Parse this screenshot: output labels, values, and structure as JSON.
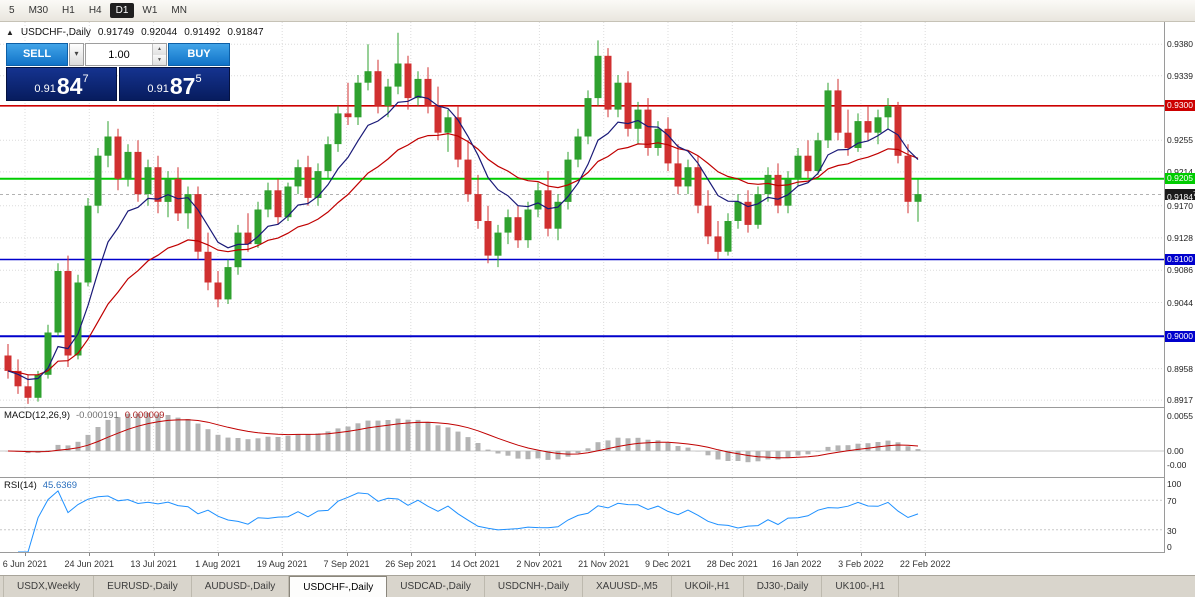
{
  "toolbar": {
    "timeframes": [
      "5",
      "M30",
      "H1",
      "H4",
      "D1",
      "W1",
      "MN"
    ],
    "active_timeframe": "D1"
  },
  "chart_header": {
    "icon": "▲",
    "title": "USDCHF-,Daily",
    "open": "0.91749",
    "high": "0.92044",
    "low": "0.91492",
    "close": "0.91847"
  },
  "icons": {
    "dropdown": "▾",
    "spin_up": "▲",
    "spin_down": "▼"
  },
  "trade_panel": {
    "sell_label": "SELL",
    "buy_label": "BUY",
    "volume": "1.00",
    "sell_price": {
      "prefix": "0.91",
      "big": "84",
      "sup": "7"
    },
    "buy_price": {
      "prefix": "0.91",
      "big": "87",
      "sup": "5"
    }
  },
  "macd_panel": {
    "label": "MACD(12,26,9)",
    "value_main": "-0.000191",
    "value_signal": "0.000009",
    "axis": [
      "0.0055",
      "0.00",
      "-0.00"
    ]
  },
  "rsi_panel": {
    "label": "RSI(14)",
    "value": "45.6369",
    "axis": [
      "100",
      "70",
      "30",
      "0"
    ]
  },
  "tabs": [
    "USDX,Weekly",
    "EURUSD-,Daily",
    "AUDUSD-,Daily",
    "USDCHF-,Daily",
    "USDCAD-,Daily",
    "USDCNH-,Daily",
    "XAUUSD-,M5",
    "UKOil-,H1",
    "DJ30-,Daily",
    "UK100-,H1"
  ],
  "active_tab": "USDCHF-,Daily",
  "colors": {
    "up": "#2fa12f",
    "down": "#d03030",
    "ma_fast": "#1a1a78",
    "ma_slow": "#c00000",
    "macd_hist": "#b4b4b4",
    "macd_signal": "#c00000",
    "rsi_line": "#1e90ff",
    "grid": "#dcdcdc",
    "bid_line": "#999999",
    "bid_badge_bg": "#1a1a1a"
  },
  "chart_data": {
    "type": "candlestick",
    "symbol": "USDCHF-",
    "timeframe": "Daily",
    "ohlc_display": {
      "open": 0.91749,
      "high": 0.92044,
      "low": 0.91492,
      "close": 0.91847
    },
    "x_labels": [
      "6 Jun 2021",
      "24 Jun 2021",
      "13 Jul 2021",
      "1 Aug 2021",
      "19 Aug 2021",
      "7 Sep 2021",
      "26 Sep 2021",
      "14 Oct 2021",
      "2 Nov 2021",
      "21 Nov 2021",
      "9 Dec 2021",
      "28 Dec 2021",
      "16 Jan 2022",
      "3 Feb 2022",
      "22 Feb 2022"
    ],
    "y_ticks": [
      "0.9380",
      "0.9339",
      "0.9255",
      "0.9214",
      "0.9170",
      "0.9128",
      "0.9086",
      "0.9044",
      "0.8958",
      "0.8917"
    ],
    "levels": [
      {
        "price": 0.93,
        "color": "#cc0000",
        "badge": "0.9300",
        "width": 1.6
      },
      {
        "price": 0.9205,
        "color": "#00cc00",
        "badge": "0.9205",
        "width": 2
      },
      {
        "price": 0.91,
        "color": "#0000cc",
        "badge": "0.9100",
        "width": 1.6
      },
      {
        "price": 0.9,
        "color": "#0000cc",
        "badge": "0.9000",
        "width": 2
      }
    ],
    "bid": {
      "price": 0.91847,
      "badge": "0.9184",
      "badge_sup": "7"
    },
    "candles": [
      [
        0.8975,
        0.899,
        0.8945,
        0.8955
      ],
      [
        0.8955,
        0.897,
        0.8925,
        0.8935
      ],
      [
        0.8935,
        0.895,
        0.8912,
        0.892
      ],
      [
        0.892,
        0.8955,
        0.8915,
        0.895
      ],
      [
        0.895,
        0.9015,
        0.8945,
        0.9005
      ],
      [
        0.9005,
        0.9095,
        0.9,
        0.9085
      ],
      [
        0.9085,
        0.9105,
        0.896,
        0.8975
      ],
      [
        0.8975,
        0.908,
        0.897,
        0.907
      ],
      [
        0.907,
        0.918,
        0.9065,
        0.917
      ],
      [
        0.917,
        0.9245,
        0.916,
        0.9235
      ],
      [
        0.9235,
        0.928,
        0.922,
        0.926
      ],
      [
        0.926,
        0.927,
        0.919,
        0.9205
      ],
      [
        0.9205,
        0.925,
        0.9195,
        0.924
      ],
      [
        0.924,
        0.9255,
        0.9175,
        0.9185
      ],
      [
        0.9185,
        0.923,
        0.917,
        0.922
      ],
      [
        0.922,
        0.9235,
        0.916,
        0.9175
      ],
      [
        0.9175,
        0.9215,
        0.9155,
        0.9205
      ],
      [
        0.9205,
        0.922,
        0.915,
        0.916
      ],
      [
        0.916,
        0.9195,
        0.914,
        0.9185
      ],
      [
        0.9185,
        0.9195,
        0.91,
        0.911
      ],
      [
        0.911,
        0.9135,
        0.906,
        0.907
      ],
      [
        0.907,
        0.9085,
        0.9038,
        0.9048
      ],
      [
        0.9048,
        0.91,
        0.9042,
        0.909
      ],
      [
        0.909,
        0.9145,
        0.908,
        0.9135
      ],
      [
        0.9135,
        0.916,
        0.911,
        0.912
      ],
      [
        0.912,
        0.9175,
        0.9115,
        0.9165
      ],
      [
        0.9165,
        0.92,
        0.9155,
        0.919
      ],
      [
        0.919,
        0.9205,
        0.9145,
        0.9155
      ],
      [
        0.9155,
        0.92,
        0.915,
        0.9195
      ],
      [
        0.9195,
        0.923,
        0.9185,
        0.922
      ],
      [
        0.922,
        0.9235,
        0.917,
        0.918
      ],
      [
        0.918,
        0.9225,
        0.917,
        0.9215
      ],
      [
        0.9215,
        0.926,
        0.9205,
        0.925
      ],
      [
        0.925,
        0.93,
        0.924,
        0.929
      ],
      [
        0.929,
        0.933,
        0.9275,
        0.9285
      ],
      [
        0.9285,
        0.934,
        0.9275,
        0.933
      ],
      [
        0.933,
        0.938,
        0.932,
        0.9345
      ],
      [
        0.9345,
        0.936,
        0.929,
        0.93
      ],
      [
        0.93,
        0.9335,
        0.9285,
        0.9325
      ],
      [
        0.9325,
        0.9395,
        0.9315,
        0.9355
      ],
      [
        0.9355,
        0.9365,
        0.9295,
        0.931
      ],
      [
        0.931,
        0.9345,
        0.93,
        0.9335
      ],
      [
        0.9335,
        0.935,
        0.929,
        0.93
      ],
      [
        0.93,
        0.9325,
        0.9255,
        0.9265
      ],
      [
        0.9265,
        0.9295,
        0.924,
        0.9285
      ],
      [
        0.9285,
        0.93,
        0.922,
        0.923
      ],
      [
        0.923,
        0.9255,
        0.9175,
        0.9185
      ],
      [
        0.9185,
        0.921,
        0.914,
        0.915
      ],
      [
        0.915,
        0.917,
        0.9095,
        0.9105
      ],
      [
        0.9105,
        0.9145,
        0.909,
        0.9135
      ],
      [
        0.9135,
        0.9165,
        0.912,
        0.9155
      ],
      [
        0.9155,
        0.917,
        0.9115,
        0.9125
      ],
      [
        0.9125,
        0.9175,
        0.9115,
        0.9165
      ],
      [
        0.9165,
        0.92,
        0.9155,
        0.919
      ],
      [
        0.919,
        0.9215,
        0.913,
        0.914
      ],
      [
        0.914,
        0.9185,
        0.9125,
        0.9175
      ],
      [
        0.9175,
        0.924,
        0.9165,
        0.923
      ],
      [
        0.923,
        0.927,
        0.922,
        0.926
      ],
      [
        0.926,
        0.932,
        0.925,
        0.931
      ],
      [
        0.931,
        0.9385,
        0.93,
        0.9365
      ],
      [
        0.9365,
        0.9375,
        0.9285,
        0.9295
      ],
      [
        0.9295,
        0.934,
        0.9285,
        0.933
      ],
      [
        0.933,
        0.9345,
        0.926,
        0.927
      ],
      [
        0.927,
        0.9305,
        0.925,
        0.9295
      ],
      [
        0.9295,
        0.931,
        0.9235,
        0.9245
      ],
      [
        0.9245,
        0.928,
        0.9235,
        0.927
      ],
      [
        0.927,
        0.9285,
        0.9215,
        0.9225
      ],
      [
        0.9225,
        0.925,
        0.9185,
        0.9195
      ],
      [
        0.9195,
        0.923,
        0.9185,
        0.922
      ],
      [
        0.922,
        0.9235,
        0.916,
        0.917
      ],
      [
        0.917,
        0.919,
        0.912,
        0.913
      ],
      [
        0.913,
        0.915,
        0.91,
        0.911
      ],
      [
        0.911,
        0.916,
        0.9105,
        0.915
      ],
      [
        0.915,
        0.9185,
        0.914,
        0.9175
      ],
      [
        0.9175,
        0.919,
        0.9135,
        0.9145
      ],
      [
        0.9145,
        0.9195,
        0.914,
        0.9185
      ],
      [
        0.9185,
        0.922,
        0.9175,
        0.921
      ],
      [
        0.921,
        0.9225,
        0.916,
        0.917
      ],
      [
        0.917,
        0.9215,
        0.916,
        0.9205
      ],
      [
        0.9205,
        0.9245,
        0.9195,
        0.9235
      ],
      [
        0.9235,
        0.9255,
        0.9205,
        0.9215
      ],
      [
        0.9215,
        0.9265,
        0.921,
        0.9255
      ],
      [
        0.9255,
        0.933,
        0.9245,
        0.932
      ],
      [
        0.932,
        0.9335,
        0.9255,
        0.9265
      ],
      [
        0.9265,
        0.9295,
        0.9235,
        0.9245
      ],
      [
        0.9245,
        0.929,
        0.924,
        0.928
      ],
      [
        0.928,
        0.93,
        0.9255,
        0.9265
      ],
      [
        0.9265,
        0.9295,
        0.925,
        0.9285
      ],
      [
        0.9285,
        0.931,
        0.927,
        0.93
      ],
      [
        0.93,
        0.9305,
        0.9225,
        0.9235
      ],
      [
        0.9235,
        0.925,
        0.916,
        0.9175
      ],
      [
        0.9175,
        0.9204,
        0.9149,
        0.9185
      ]
    ]
  }
}
